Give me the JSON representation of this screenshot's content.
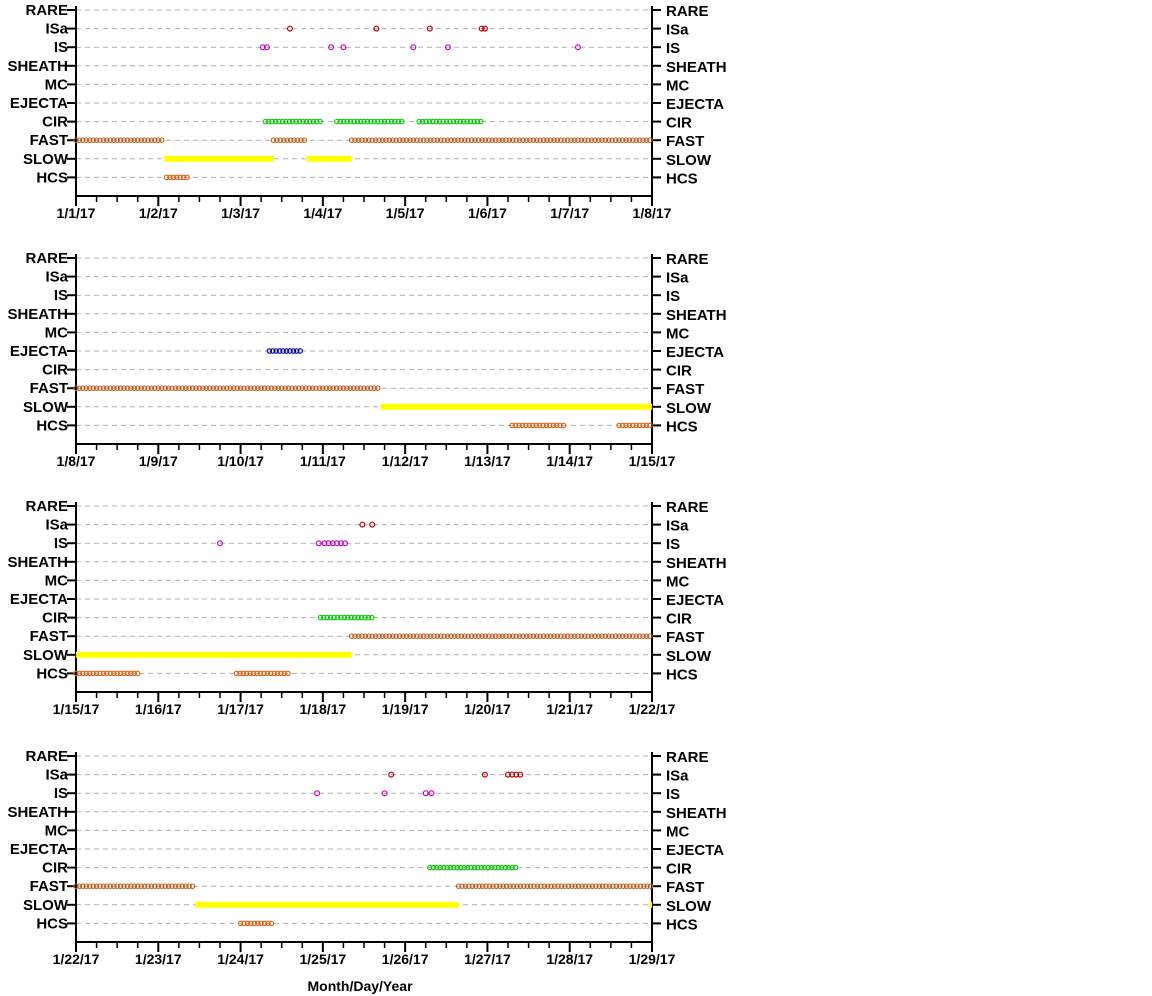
{
  "chart_data": {
    "type": "scatter",
    "xlabel": "Month/Day/Year",
    "categories": [
      "RARE",
      "ISa",
      "IS",
      "SHEATH",
      "MC",
      "EJECTA",
      "CIR",
      "FAST",
      "SLOW",
      "HCS"
    ],
    "colors": {
      "ISa": "#c00000",
      "IS": "#cc00cc",
      "EJECTA": "#000099",
      "CIR": "#00cc00",
      "FAST": "#c06020",
      "SLOW": "#ffff00",
      "HCS": "#e06010",
      "axis": "#000000",
      "grid": "#b0b0b0"
    },
    "panels": [
      {
        "tick_labels": [
          "1/1/17",
          "1/2/17",
          "1/3/17",
          "1/4/17",
          "1/5/17",
          "1/6/17",
          "1/7/17",
          "1/8/17"
        ],
        "xlim": [
          0,
          7
        ],
        "series": [
          {
            "category": "ISa",
            "points": [
              2.6,
              3.65,
              4.3,
              4.93,
              4.97
            ]
          },
          {
            "category": "IS",
            "points": [
              2.27,
              2.32,
              3.1,
              3.25,
              4.1,
              4.52,
              6.1
            ]
          },
          {
            "category": "CIR",
            "ranges": [
              [
                2.3,
                2.97
              ],
              [
                3.17,
                3.47
              ],
              [
                3.5,
                3.97
              ],
              [
                4.17,
                4.93
              ]
            ]
          },
          {
            "category": "FAST",
            "ranges": [
              [
                0,
                1.07
              ],
              [
                2.4,
                2.8
              ],
              [
                3.35,
                7.0
              ]
            ]
          },
          {
            "category": "SLOW",
            "ranges": [
              [
                1.07,
                2.4
              ],
              [
                2.8,
                3.35
              ]
            ]
          },
          {
            "category": "HCS",
            "ranges": [
              [
                1.1,
                1.37
              ]
            ]
          }
        ]
      },
      {
        "tick_labels": [
          "1/8/17",
          "1/9/17",
          "1/10/17",
          "1/11/17",
          "1/12/17",
          "1/13/17",
          "1/14/17",
          "1/15/17"
        ],
        "xlim": [
          0,
          7
        ],
        "series": [
          {
            "category": "EJECTA",
            "ranges": [
              [
                2.35,
                2.75
              ]
            ]
          },
          {
            "category": "FAST",
            "ranges": [
              [
                0,
                3.7
              ]
            ]
          },
          {
            "category": "SLOW",
            "ranges": [
              [
                3.7,
                7.0
              ]
            ]
          },
          {
            "category": "HCS",
            "ranges": [
              [
                5.3,
                5.95
              ],
              [
                6.6,
                7.0
              ]
            ]
          }
        ]
      },
      {
        "tick_labels": [
          "1/15/17",
          "1/16/17",
          "1/17/17",
          "1/18/17",
          "1/19/17",
          "1/20/17",
          "1/21/17",
          "1/22/17"
        ],
        "xlim": [
          0,
          7
        ],
        "series": [
          {
            "category": "ISa",
            "points": [
              3.48,
              3.6
            ]
          },
          {
            "category": "IS",
            "points": [
              1.75,
              2.95,
              3.02,
              3.07,
              3.12,
              3.17,
              3.22,
              3.27
            ]
          },
          {
            "category": "CIR",
            "ranges": [
              [
                2.97,
                3.6
              ]
            ]
          },
          {
            "category": "FAST",
            "ranges": [
              [
                3.35,
                7.0
              ]
            ]
          },
          {
            "category": "SLOW",
            "ranges": [
              [
                0,
                3.35
              ]
            ]
          },
          {
            "category": "HCS",
            "ranges": [
              [
                0,
                0.75
              ],
              [
                1.95,
                2.6
              ]
            ]
          }
        ]
      },
      {
        "tick_labels": [
          "1/22/17",
          "1/23/17",
          "1/24/17",
          "1/25/17",
          "1/26/17",
          "1/27/17",
          "1/28/17",
          "1/29/17"
        ],
        "xlim": [
          0,
          7
        ],
        "series": [
          {
            "category": "ISa",
            "points": [
              3.83,
              4.97,
              5.25,
              5.3,
              5.35,
              5.4
            ]
          },
          {
            "category": "IS",
            "points": [
              2.93,
              3.75,
              4.25,
              4.32
            ]
          },
          {
            "category": "CIR",
            "ranges": [
              [
                4.3,
                5.35
              ]
            ]
          },
          {
            "category": "FAST",
            "ranges": [
              [
                0,
                1.45
              ],
              [
                4.65,
                7.0
              ]
            ]
          },
          {
            "category": "SLOW",
            "ranges": [
              [
                1.45,
                4.65
              ],
              [
                6.97,
                7.0
              ]
            ]
          },
          {
            "category": "HCS",
            "ranges": [
              [
                2.0,
                2.4
              ]
            ]
          }
        ]
      }
    ]
  }
}
